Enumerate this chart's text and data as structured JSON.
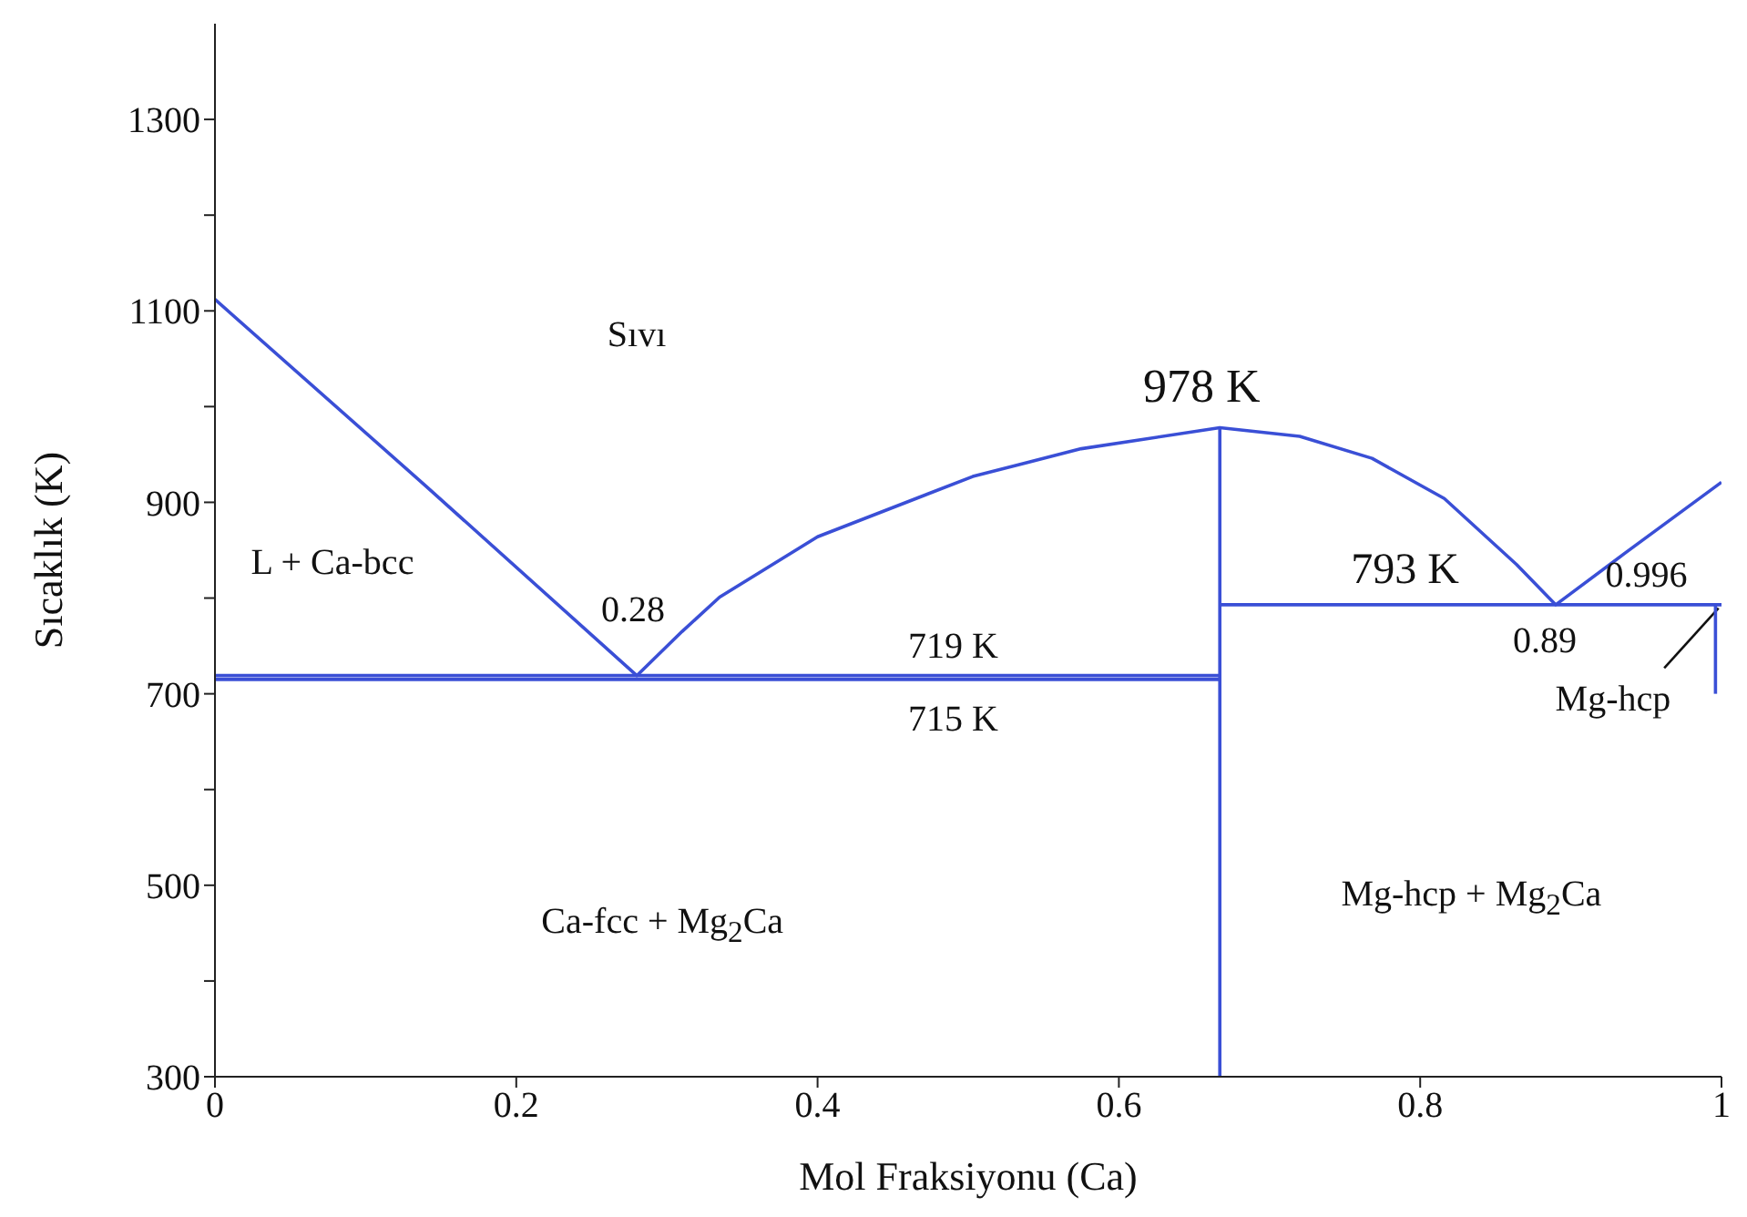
{
  "chart_data": {
    "type": "line",
    "xlabel": "Mol Fraksiyonu (Ca)",
    "ylabel": "Sıcaklık (K)",
    "xlim": [
      0,
      1
    ],
    "xticks": [
      0,
      0.2,
      0.4,
      0.6,
      0.8,
      1
    ],
    "ylim": [
      300,
      1400
    ],
    "yticks": [
      300,
      {
        "value": 400,
        "label": null
      },
      500,
      {
        "value": 600,
        "label": null
      },
      700,
      {
        "value": 800,
        "label": null
      },
      900,
      {
        "value": 1000,
        "label": null
      },
      1100,
      {
        "value": 1200,
        "label": null
      },
      1300
    ],
    "marker": "none",
    "line_style": "solid",
    "series": [
      {
        "color": "#3a4fd6",
        "x": [
          0,
          0.14,
          0.28,
          0.31,
          0.335,
          0.4,
          0.503,
          0.575,
          0.667,
          0.72,
          0.768,
          0.816,
          0.864,
          0.89,
          0.936,
          1
        ],
        "values": [
          1112,
          917,
          719,
          765,
          801,
          864,
          927,
          956,
          978,
          969,
          946,
          904,
          835,
          793,
          847,
          921
        ]
      },
      {
        "color": "#3a4fd6",
        "x": [
          0,
          0.667
        ],
        "values": [
          719,
          719
        ]
      },
      {
        "color": "#3a4fd6",
        "x": [
          0,
          0.667
        ],
        "values": [
          715,
          715
        ]
      },
      {
        "color": "#3a4fd6",
        "x": [
          0.667,
          0.667
        ],
        "values": [
          300,
          978
        ]
      },
      {
        "color": "#3a4fd6",
        "x": [
          0.667,
          1
        ],
        "values": [
          793,
          793
        ]
      },
      {
        "color": "#3a4fd6",
        "x": [
          0.996,
          0.996
        ],
        "values": [
          793,
          700
        ]
      }
    ],
    "annotations": [
      "Sıvı",
      "L + Ca-bcc",
      "Ca-fcc + Mg$_{2}$Ca",
      "Mg-hcp + Mg$_{2}$Ca",
      "Mg-hcp",
      {
        "text": "978 K",
        "x": 0.667,
        "y": 978
      },
      {
        "text": "0.28",
        "x": 0.28,
        "y": 719
      },
      {
        "text": "0.89",
        "x": 0.89,
        "y": 793
      },
      {
        "text": "0.996",
        "x": 0.996,
        "y": 793
      },
      {
        "text": "719 K",
        "x": 0.49,
        "y": 719
      },
      {
        "text": "715 K",
        "x": 0.49,
        "y": 715
      },
      {
        "text": "793 K",
        "x": 0.79,
        "y": 793
      }
    ]
  }
}
